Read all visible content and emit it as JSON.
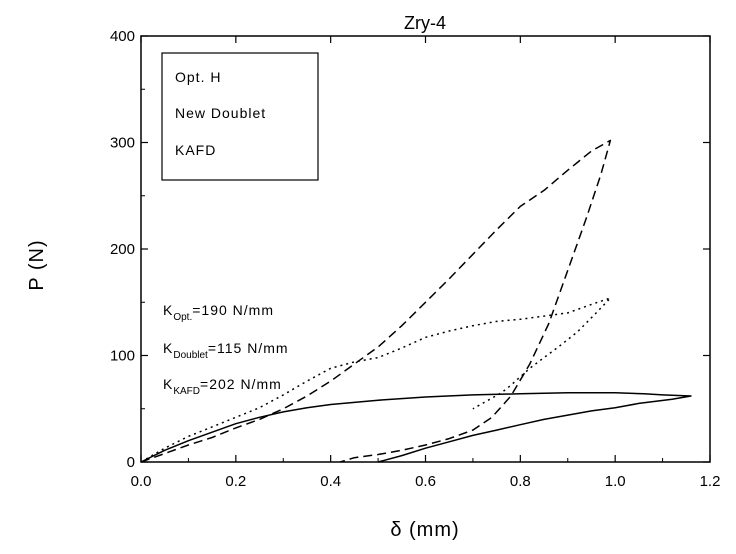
{
  "chart_data": {
    "type": "line",
    "title": "Zry-4",
    "xlabel": "δ (mm)",
    "ylabel": "P (N)",
    "xlim": [
      0.0,
      1.2
    ],
    "ylim": [
      0,
      400
    ],
    "xticks": [
      "0.0",
      "0.2",
      "0.4",
      "0.6",
      "0.8",
      "1.0",
      "1.2"
    ],
    "yticks": [
      "0",
      "100",
      "200",
      "300",
      "400"
    ],
    "grid": false,
    "legend_position": "top-left",
    "legend": [
      "Opt. H",
      "New Doublet",
      "KAFD"
    ],
    "annotations": [
      {
        "k": "K",
        "sub": "Opt.",
        "value": "=190 N/mm"
      },
      {
        "k": "K",
        "sub": "Doublet",
        "value": "=115 N/mm"
      },
      {
        "k": "K",
        "sub": "KAFD",
        "value": "=202 N/mm"
      }
    ],
    "series": [
      {
        "style": "dashed",
        "x": [
          0.0,
          0.05,
          0.1,
          0.15,
          0.2,
          0.25,
          0.3,
          0.35,
          0.4,
          0.45,
          0.5,
          0.55,
          0.6,
          0.65,
          0.7,
          0.75,
          0.8,
          0.85,
          0.9,
          0.95,
          0.99,
          0.97,
          0.94,
          0.9,
          0.86,
          0.82,
          0.78,
          0.74,
          0.7,
          0.65,
          0.6,
          0.55,
          0.5,
          0.45,
          0.42
        ],
        "y": [
          0,
          8,
          16,
          23,
          32,
          40,
          50,
          62,
          76,
          92,
          108,
          128,
          150,
          172,
          195,
          218,
          240,
          255,
          274,
          292,
          302,
          270,
          230,
          180,
          130,
          92,
          62,
          42,
          30,
          22,
          16,
          11,
          7,
          4,
          0
        ]
      },
      {
        "style": "dotted",
        "x": [
          0.0,
          0.05,
          0.1,
          0.15,
          0.2,
          0.25,
          0.3,
          0.35,
          0.4,
          0.45,
          0.5,
          0.55,
          0.6,
          0.65,
          0.7,
          0.75,
          0.8,
          0.85,
          0.9,
          0.95,
          0.99,
          0.96,
          0.92,
          0.88,
          0.85,
          0.82,
          0.8,
          0.78,
          0.76,
          0.74,
          0.7
        ],
        "y": [
          0,
          13,
          24,
          33,
          42,
          51,
          63,
          76,
          88,
          94,
          98,
          107,
          117,
          123,
          128,
          132,
          134,
          137,
          140,
          148,
          154,
          140,
          122,
          108,
          98,
          88,
          80,
          72,
          65,
          60,
          50
        ]
      },
      {
        "style": "solid",
        "x": [
          0.0,
          0.05,
          0.1,
          0.15,
          0.2,
          0.25,
          0.3,
          0.35,
          0.4,
          0.5,
          0.6,
          0.7,
          0.8,
          0.9,
          1.0,
          1.06,
          1.1,
          1.16,
          1.12,
          1.05,
          1.0,
          0.95,
          0.9,
          0.85,
          0.8,
          0.75,
          0.7,
          0.65,
          0.6,
          0.55,
          0.5
        ],
        "y": [
          0,
          11,
          20,
          28,
          36,
          42,
          47,
          51,
          54,
          58,
          61,
          63,
          64,
          65,
          65,
          64,
          63,
          62,
          59,
          55,
          51,
          48,
          44,
          40,
          35,
          30,
          25,
          19,
          13,
          6,
          0
        ]
      }
    ]
  }
}
